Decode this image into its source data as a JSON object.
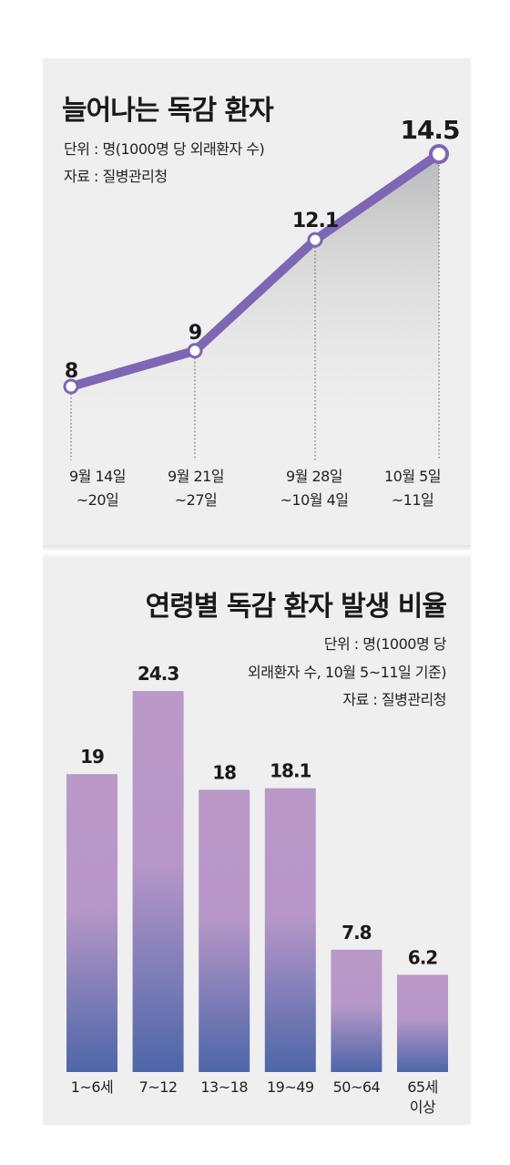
{
  "line_chart": {
    "title": "늘어나는 독감 환자",
    "unit_note": "단위 : 명(1000명 당 외래환자 수)",
    "source_note": "자료 : 질병관리청",
    "labels": [
      [
        "9월 14일",
        "~20일"
      ],
      [
        "9월 21일",
        "~27일"
      ],
      [
        "9월 28일",
        "~10월 4일"
      ],
      [
        "10월 5일",
        "~11일"
      ]
    ]
  },
  "bar_chart": {
    "title": "연령별 독감 환자 발생 비율",
    "unit_note_line1": "단위 : 명(1000명 당",
    "unit_note_line2": "외래환자 수, 10월 5~11일 기준)",
    "source_note": "자료 : 질병관리청"
  },
  "chart_data": [
    {
      "type": "line",
      "title": "늘어나는 독감 환자",
      "x": [
        "9월 14일~20일",
        "9월 21일~27일",
        "9월 28일~10월 4일",
        "10월 5일~11일"
      ],
      "values": [
        8,
        9,
        12.1,
        14.5
      ],
      "value_labels": [
        "8",
        "9",
        "12.1",
        "14.5"
      ],
      "line_color": "#7d67b4",
      "area_fill": "gray-gradient"
    },
    {
      "type": "bar",
      "title": "연령별 독감 환자 발생 비율",
      "categories": [
        [
          "1~6세"
        ],
        [
          "7~12"
        ],
        [
          "13~18"
        ],
        [
          "19~49"
        ],
        [
          "50~64"
        ],
        [
          "65세",
          "이상"
        ]
      ],
      "values": [
        19,
        24.3,
        18,
        18.1,
        7.8,
        6.2
      ],
      "value_labels": [
        "19",
        "24.3",
        "18",
        "18.1",
        "7.8",
        "6.2"
      ],
      "bar_color_top": "#ba98c8",
      "bar_color_bottom": "#4d66a8"
    }
  ]
}
